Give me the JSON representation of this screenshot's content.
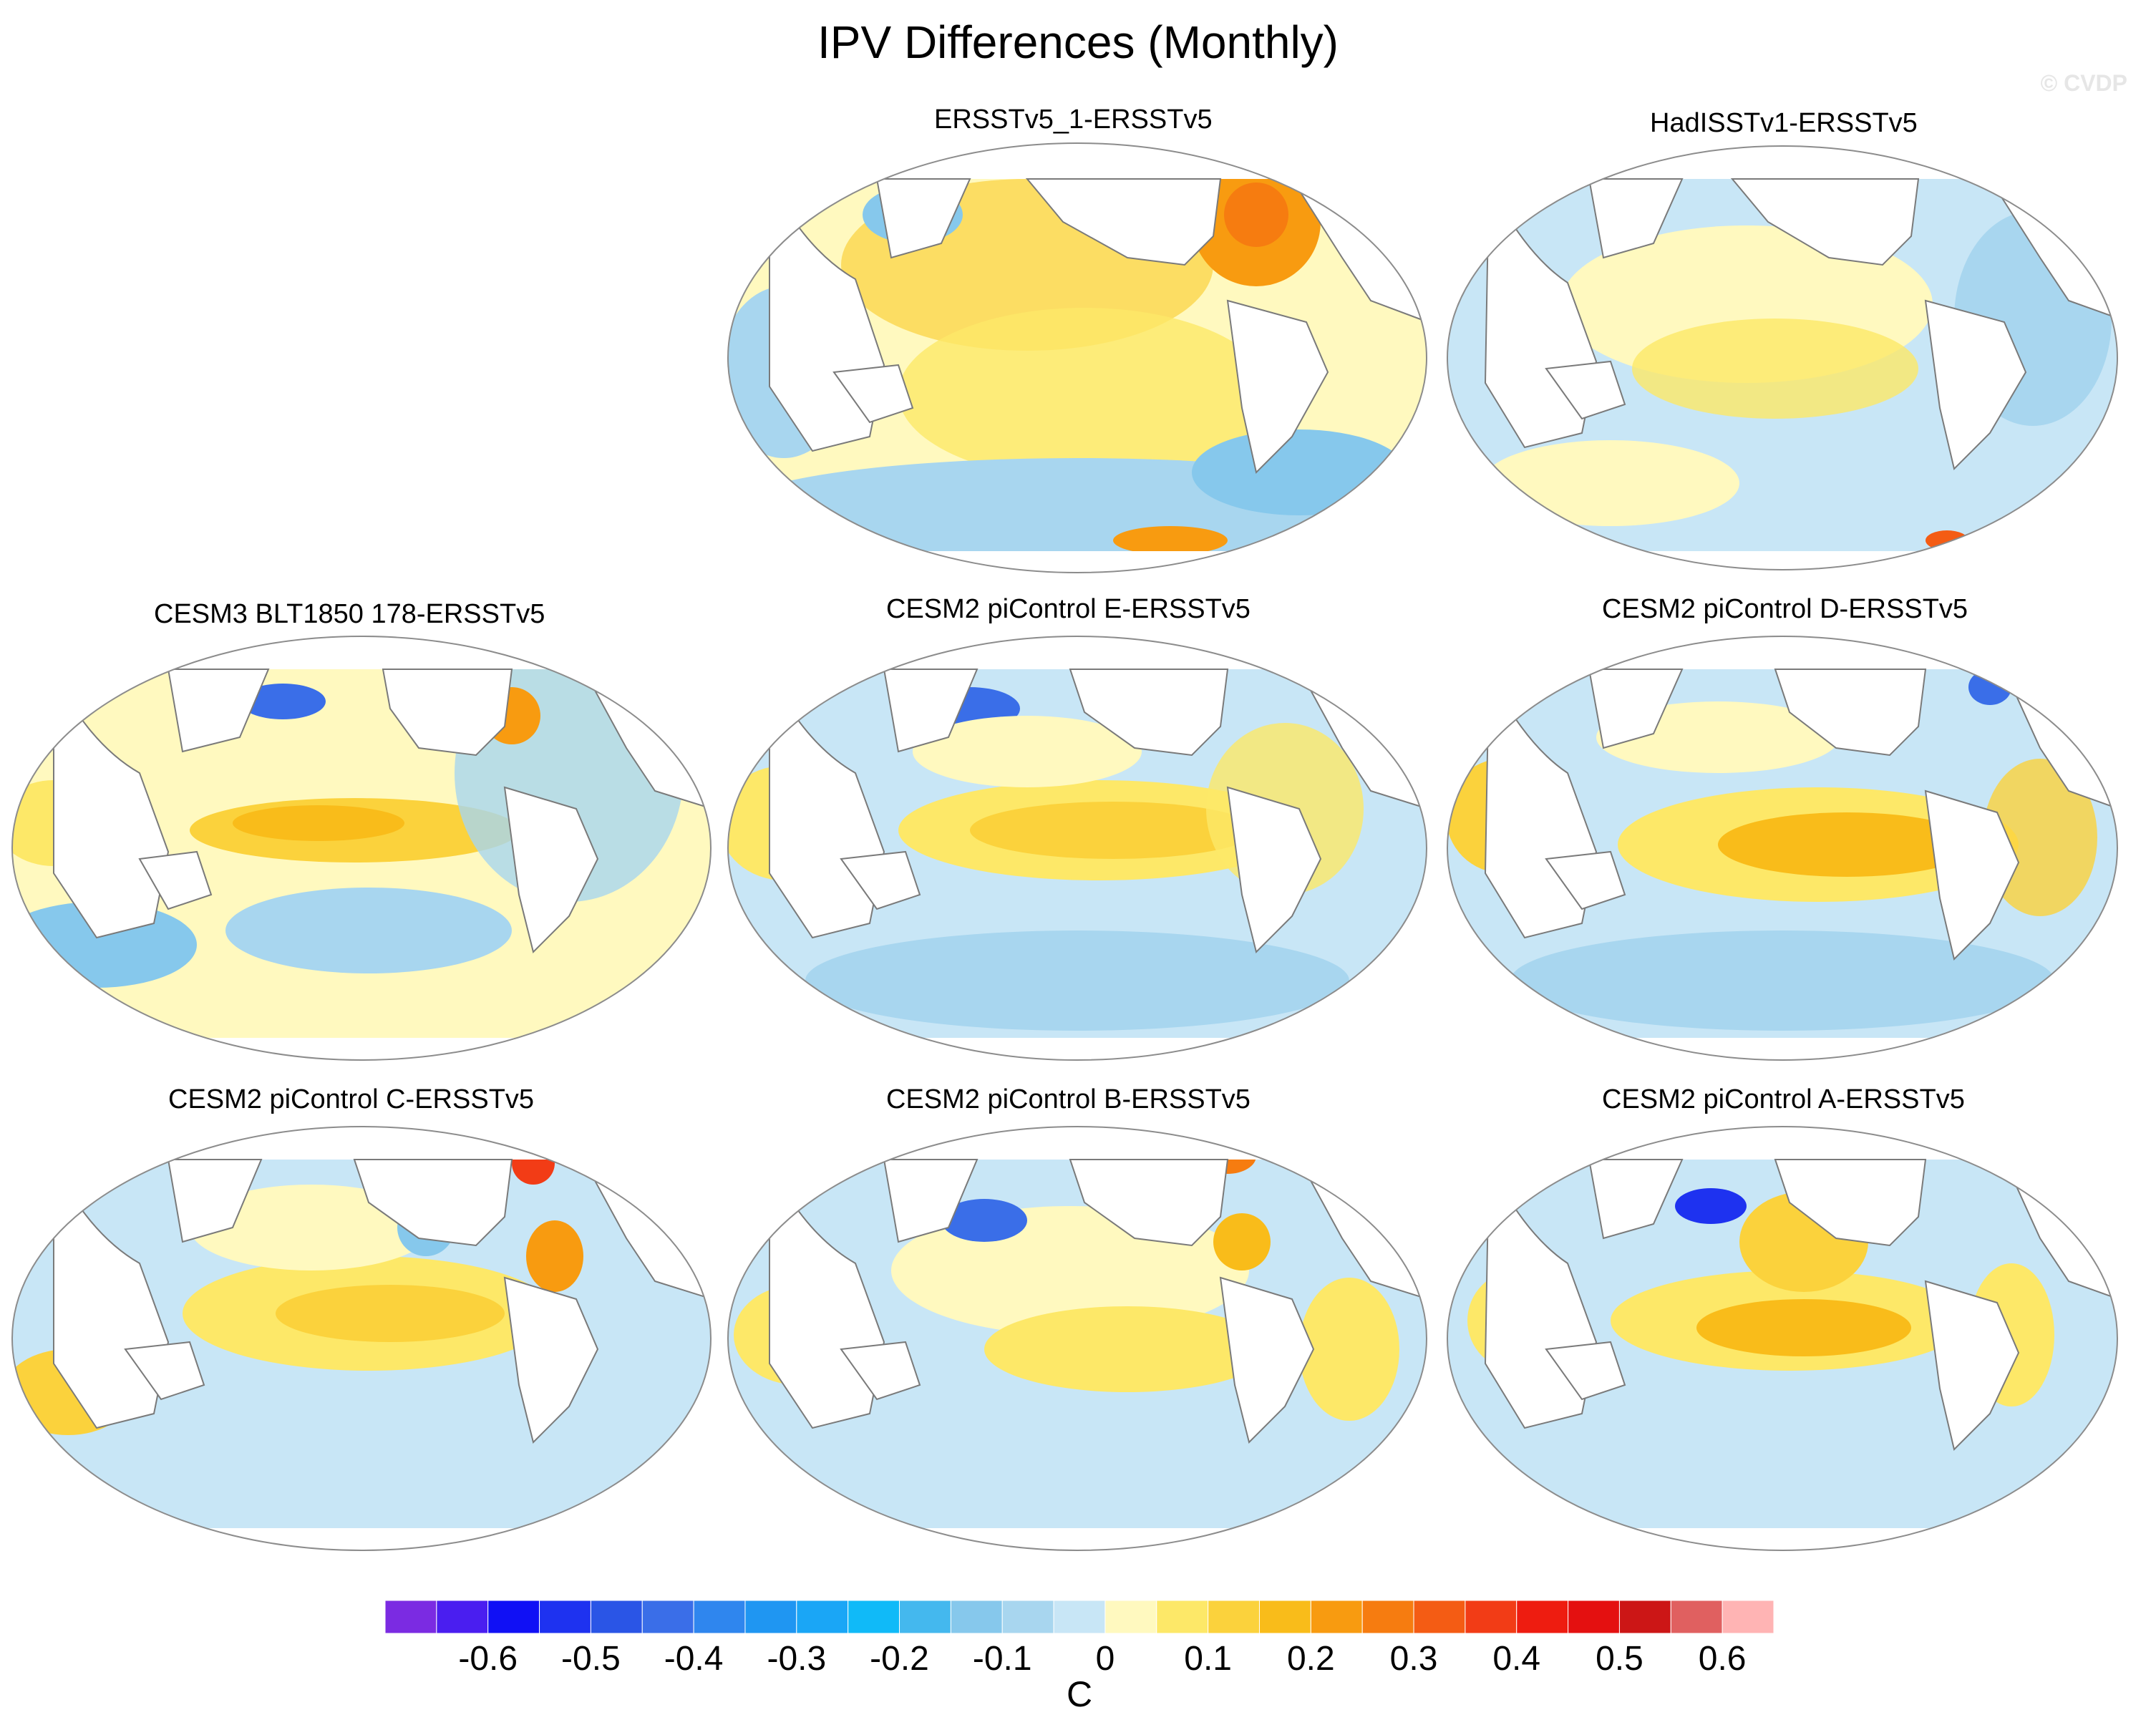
{
  "figure": {
    "title": "IPV Differences (Monthly)",
    "watermark": "© CVDP",
    "colors": {
      "background": "#ffffff",
      "land": "#ffffff",
      "coast": "#7a7a7a",
      "border": "#8c8c8c"
    }
  },
  "panels": [
    {
      "id": "ersstv5_1",
      "title": "ERSSTv5_1-ERSSTv5",
      "pattern": "warm-north-pacific-atlantic"
    },
    {
      "id": "hadisst",
      "title": "HadISSTv1-ERSSTv5",
      "pattern": "mostly-cool"
    },
    {
      "id": "cesm3_blt",
      "title": "CESM3 BLT1850 178-ERSSTv5",
      "pattern": "warm-tropics"
    },
    {
      "id": "cesm2_e",
      "title": "CESM2 piControl E-ERSSTv5",
      "pattern": "warm-tropics"
    },
    {
      "id": "cesm2_d",
      "title": "CESM2 piControl D-ERSSTv5",
      "pattern": "warm-tropics"
    },
    {
      "id": "cesm2_c",
      "title": "CESM2 piControl C-ERSSTv5",
      "pattern": "warm-tropics"
    },
    {
      "id": "cesm2_b",
      "title": "CESM2 piControl B-ERSSTv5",
      "pattern": "mixed"
    },
    {
      "id": "cesm2_a",
      "title": "CESM2 piControl A-ERSSTv5",
      "pattern": "warm-tropics"
    }
  ],
  "colorbar": {
    "units": "C",
    "tick_labels": [
      "-0.6",
      "-0.5",
      "-0.4",
      "-0.3",
      "-0.2",
      "-0.1",
      "0",
      "0.1",
      "0.2",
      "0.3",
      "0.4",
      "0.5",
      "0.6"
    ],
    "levels": [
      -0.65,
      -0.6,
      -0.55,
      -0.5,
      -0.45,
      -0.4,
      -0.35,
      -0.3,
      -0.25,
      -0.2,
      -0.15,
      -0.1,
      -0.05,
      0,
      0.05,
      0.1,
      0.15,
      0.2,
      0.25,
      0.3,
      0.35,
      0.4,
      0.45,
      0.5,
      0.55,
      0.6,
      0.65
    ],
    "colors": [
      "#7b2be2",
      "#4a1ef0",
      "#1010f5",
      "#1e32f0",
      "#2a55e6",
      "#3a6ee8",
      "#2f86ee",
      "#1f96f2",
      "#1aa6f6",
      "#10baf8",
      "#44b8ee",
      "#86c8ec",
      "#a8d6ef",
      "#c8e6f6",
      "#fff9bf",
      "#fde868",
      "#fbd23c",
      "#f9bc1a",
      "#f89b10",
      "#f67c10",
      "#f45c14",
      "#f23c16",
      "#ee1c10",
      "#e41010",
      "#cc1616",
      "#e06060",
      "#ffb4b4"
    ]
  }
}
